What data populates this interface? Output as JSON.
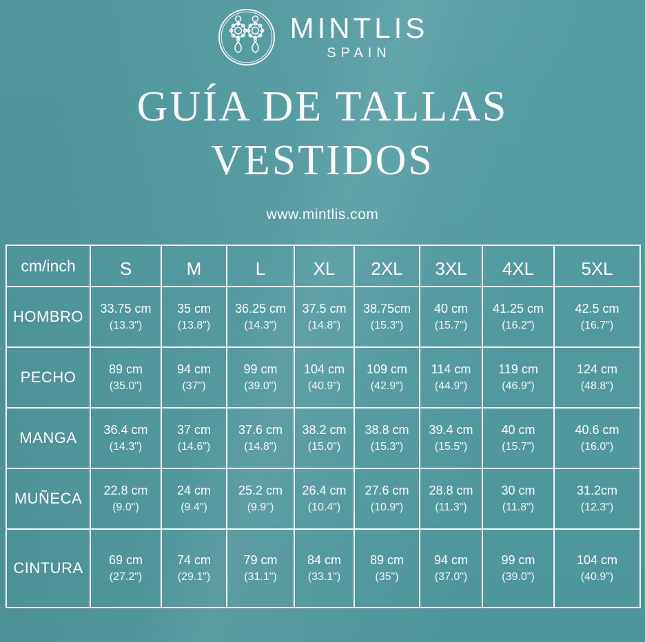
{
  "brand": {
    "name": "MINTLIS",
    "subtitle": "SPAIN",
    "logo_icon": "earrings-icon"
  },
  "title": {
    "line1": "GUÍA DE TALLAS",
    "line2": "VESTIDOS"
  },
  "website": "www.mintlis.com",
  "colors": {
    "background": "#4f9ba0",
    "text": "#ffffff",
    "table_border": "#ffffff"
  },
  "table": {
    "corner_label": "cm/inch",
    "columns": [
      "S",
      "M",
      "L",
      "XL",
      "2XL",
      "3XL",
      "4XL",
      "5XL"
    ],
    "rows": [
      {
        "label": "HOMBRO",
        "cells": [
          [
            "33.75 cm",
            "(13.3\")"
          ],
          [
            "35 cm",
            "(13.8\")"
          ],
          [
            "36.25 cm",
            "(14.3\")"
          ],
          [
            "37.5 cm",
            "(14.8\")"
          ],
          [
            "38.75cm",
            "(15.3\")"
          ],
          [
            "40 cm",
            "(15.7\")"
          ],
          [
            "41.25 cm",
            "(16.2\")"
          ],
          [
            "42.5 cm",
            "(16.7\")"
          ]
        ]
      },
      {
        "label": "PECHO",
        "cells": [
          [
            "89 cm",
            "(35.0\")"
          ],
          [
            "94 cm",
            "(37\")"
          ],
          [
            "99 cm",
            "(39.0\")"
          ],
          [
            "104 cm",
            "(40.9\")"
          ],
          [
            "109 cm",
            "(42.9\")"
          ],
          [
            "114 cm",
            "(44.9\")"
          ],
          [
            "119 cm",
            "(46.9\")"
          ],
          [
            "124 cm",
            "(48.8\")"
          ]
        ]
      },
      {
        "label": "MANGA",
        "cells": [
          [
            "36.4 cm",
            "(14.3\")"
          ],
          [
            "37 cm",
            "(14.6\")"
          ],
          [
            "37.6 cm",
            "(14.8\")"
          ],
          [
            "38.2 cm",
            "(15.0\")"
          ],
          [
            "38.8 cm",
            "(15.3\")"
          ],
          [
            "39.4 cm",
            "(15.5\")"
          ],
          [
            "40 cm",
            "(15.7\")"
          ],
          [
            "40.6 cm",
            "(16.0\")"
          ]
        ]
      },
      {
        "label": "MUÑECA",
        "cells": [
          [
            "22.8 cm",
            "(9.0\")"
          ],
          [
            "24 cm",
            "(9.4\")"
          ],
          [
            "25.2 cm",
            "(9.9\")"
          ],
          [
            "26.4 cm",
            "(10.4\")"
          ],
          [
            "27.6 cm",
            "(10.9\")"
          ],
          [
            "28.8 cm",
            "(11.3\")"
          ],
          [
            "30 cm",
            "(11.8\")"
          ],
          [
            "31.2cm",
            "(12.3\")"
          ]
        ]
      },
      {
        "label": "CINTURA",
        "cells": [
          [
            "69 cm",
            "(27.2\")"
          ],
          [
            "74 cm",
            "(29.1\")"
          ],
          [
            "79 cm",
            "(31.1\")"
          ],
          [
            "84 cm",
            "(33.1\")"
          ],
          [
            "89 cm",
            "(35\")"
          ],
          [
            "94 cm",
            "(37.0\")"
          ],
          [
            "99 cm",
            "(39.0\")"
          ],
          [
            "104 cm",
            "(40.9\")"
          ]
        ]
      }
    ]
  }
}
